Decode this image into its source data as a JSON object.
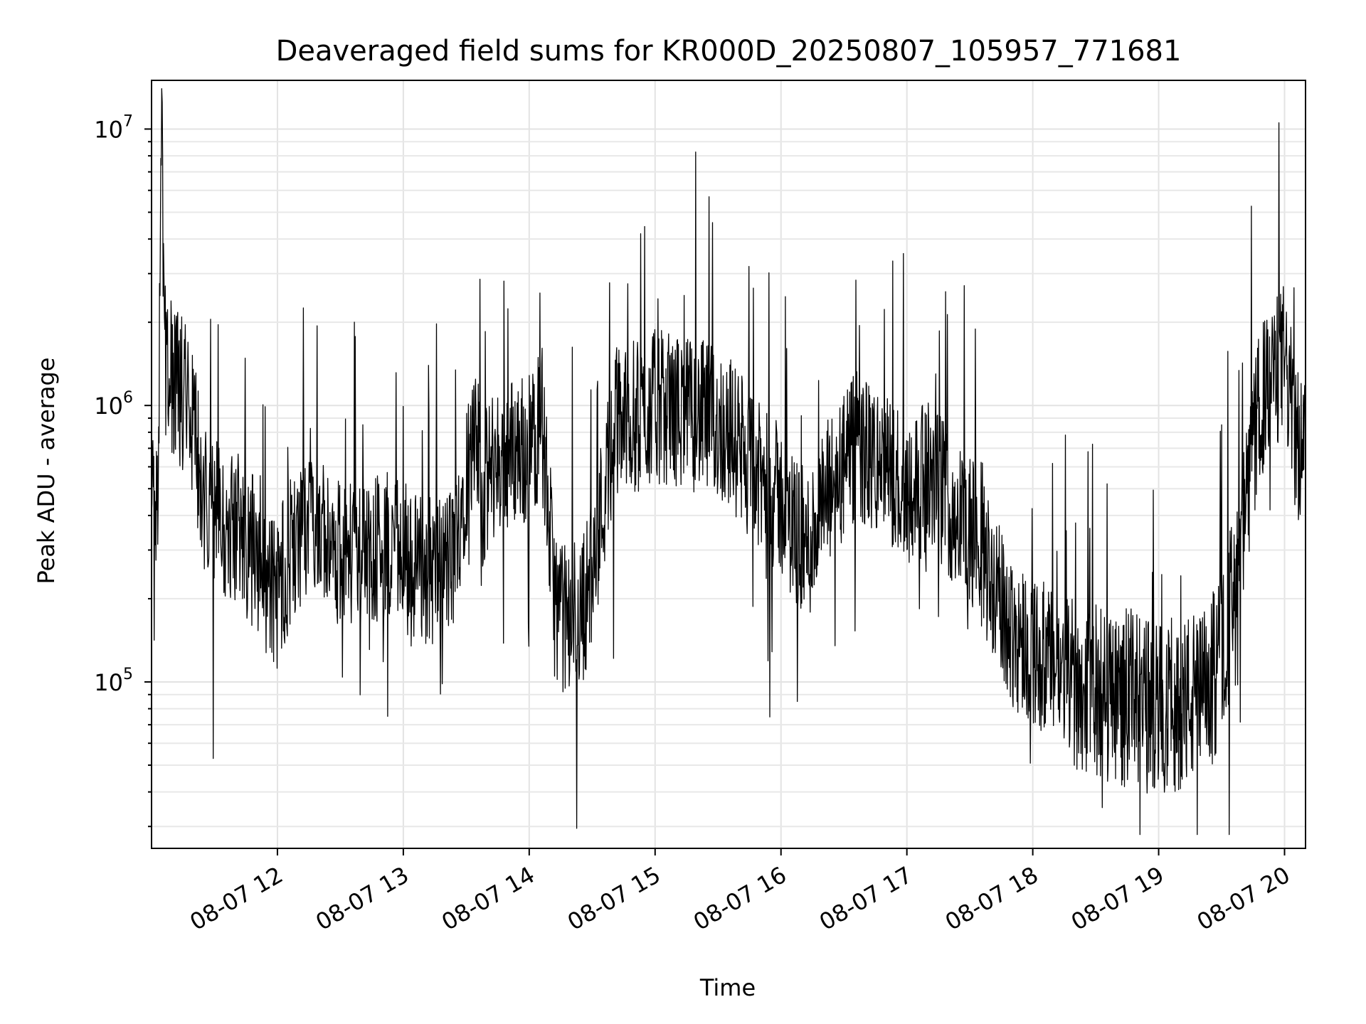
{
  "chart_data": {
    "type": "line",
    "title": "Deaveraged field sums for KR000D_20250807_105957_771681",
    "xlabel": "Time",
    "ylabel": "Peak ADU - average",
    "yscale": "log",
    "ylim": [
      25000,
      15000000
    ],
    "xlim": [
      "08-07 11:00",
      "08-07 20:10"
    ],
    "grid": true,
    "x_ticks": [
      "08-07 12",
      "08-07 13",
      "08-07 14",
      "08-07 15",
      "08-07 16",
      "08-07 17",
      "08-07 18",
      "08-07 19",
      "08-07 20"
    ],
    "y_ticks": [
      {
        "base": "10",
        "exp": "5",
        "value": 100000
      },
      {
        "base": "10",
        "exp": "6",
        "value": 1000000
      },
      {
        "base": "10",
        "exp": "7",
        "value": 10000000
      }
    ],
    "colors": {
      "line": "#000000",
      "grid": "#e3e3e3"
    },
    "series": [
      {
        "name": "",
        "x_hours": [
          11.0,
          11.05,
          11.08,
          11.1,
          11.15,
          11.2,
          11.3,
          11.4,
          11.5,
          11.6,
          11.7,
          11.8,
          11.9,
          12.0,
          12.1,
          12.2,
          12.3,
          12.4,
          12.5,
          12.6,
          12.7,
          12.8,
          12.9,
          13.0,
          13.1,
          13.2,
          13.3,
          13.4,
          13.5,
          13.6,
          13.62,
          13.65,
          13.7,
          13.8,
          13.9,
          14.0,
          14.05,
          14.1,
          14.2,
          14.3,
          14.35,
          14.4,
          14.5,
          14.6,
          14.7,
          14.8,
          14.9,
          15.0,
          15.2,
          15.4,
          15.6,
          15.8,
          16.0,
          16.2,
          16.4,
          16.6,
          16.8,
          17.0,
          17.2,
          17.4,
          17.6,
          17.8,
          18.0,
          18.2,
          18.4,
          18.6,
          18.8,
          19.0,
          19.2,
          19.4,
          19.6,
          19.8,
          20.0,
          20.1
        ],
        "y_center": [
          480000,
          450000,
          10500000,
          1500000,
          1300000,
          1200000,
          1000000,
          500000,
          400000,
          380000,
          350000,
          300000,
          220000,
          200000,
          300000,
          320000,
          350000,
          380000,
          290000,
          280000,
          300000,
          310000,
          300000,
          280000,
          260000,
          250000,
          260000,
          280000,
          600000,
          700000,
          400000,
          500000,
          600000,
          650000,
          700000,
          700000,
          800000,
          900000,
          200000,
          160000,
          180000,
          170000,
          250000,
          500000,
          900000,
          900000,
          900000,
          1000000,
          950000,
          900000,
          800000,
          550000,
          450000,
          300000,
          500000,
          700000,
          600000,
          500000,
          550000,
          400000,
          300000,
          160000,
          130000,
          110000,
          95000,
          90000,
          85000,
          80000,
          85000,
          90000,
          200000,
          1000000,
          1500000,
          700000
        ]
      }
    ]
  }
}
